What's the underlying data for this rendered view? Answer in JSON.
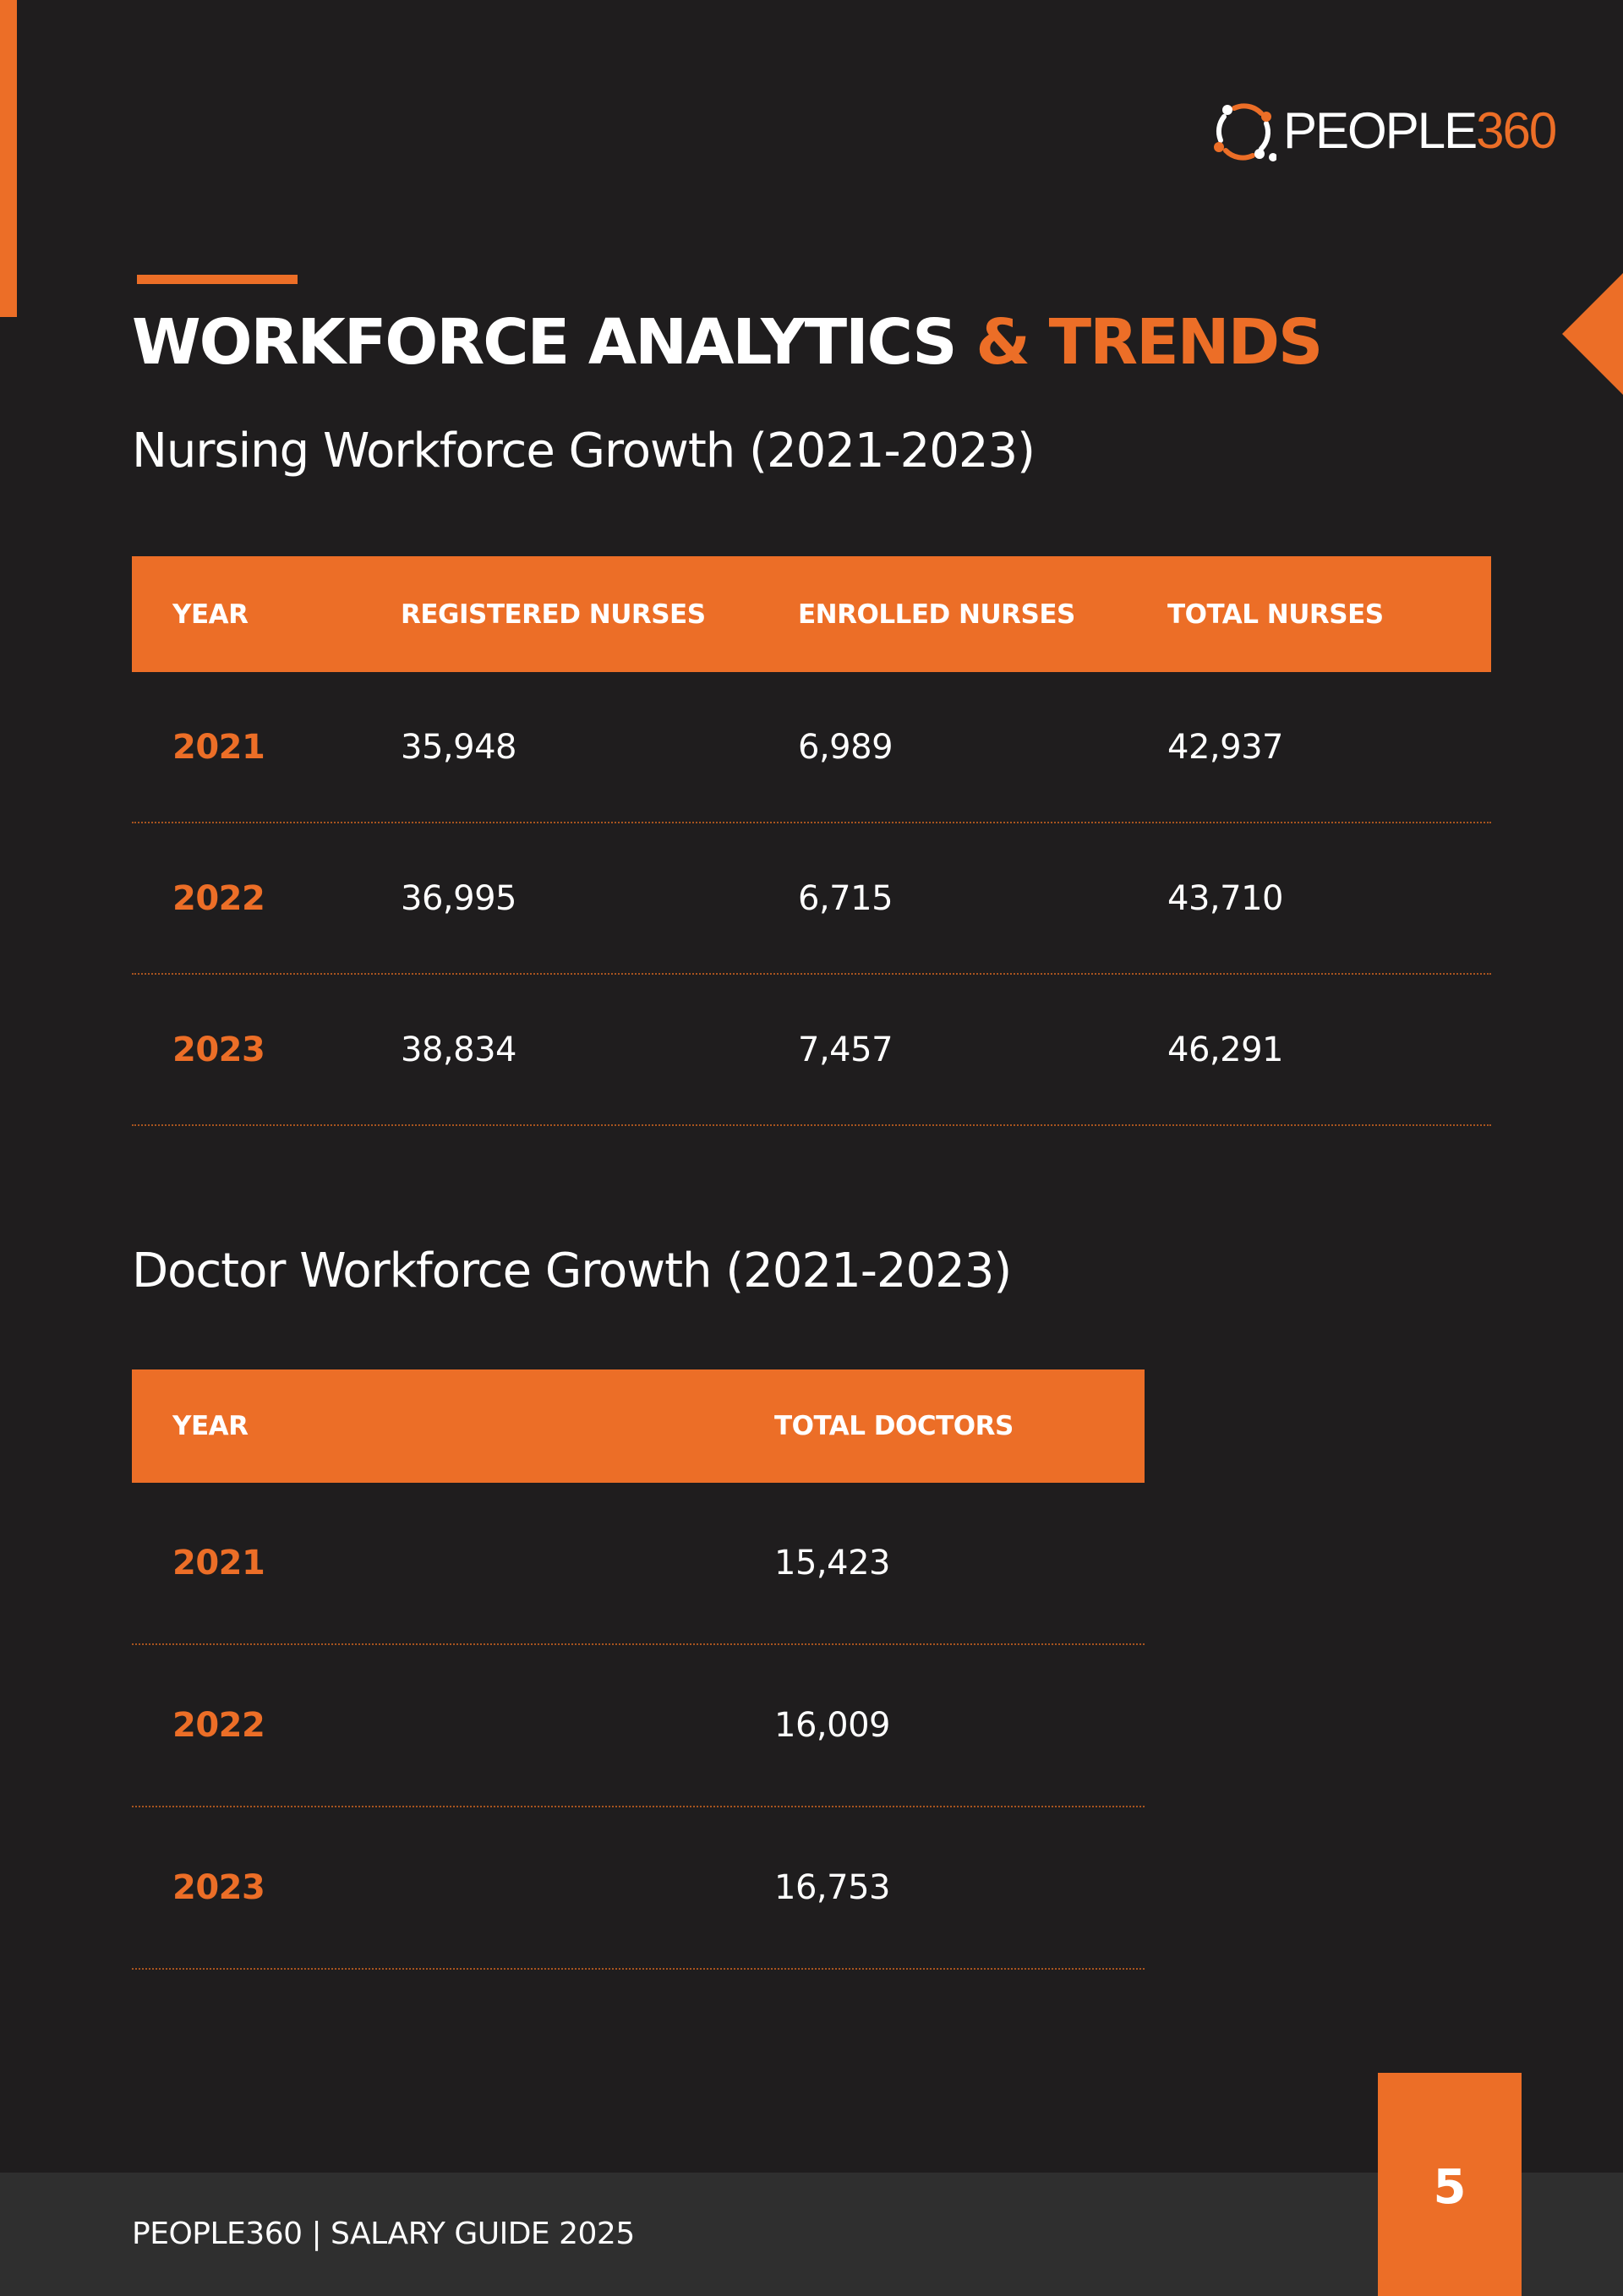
{
  "logo": {
    "text_main": "PEOPLE",
    "text_accent": "360"
  },
  "title": {
    "part1": "WORKFORCE ANALYTICS",
    "part2": "& TRENDS"
  },
  "nursing": {
    "heading": "Nursing Workforce Growth (2021-2023)",
    "columns": [
      "YEAR",
      "REGISTERED NURSES",
      "ENROLLED NURSES",
      "TOTAL NURSES"
    ],
    "rows": [
      [
        "2021",
        "35,948",
        "6,989",
        "42,937"
      ],
      [
        "2022",
        "36,995",
        "6,715",
        "43,710"
      ],
      [
        "2023",
        "38,834",
        "7,457",
        "46,291"
      ]
    ]
  },
  "doctors": {
    "heading": "Doctor Workforce Growth (2021-2023)",
    "columns": [
      "YEAR",
      "TOTAL DOCTORS"
    ],
    "rows": [
      [
        "2021",
        "15,423"
      ],
      [
        "2022",
        "16,009"
      ],
      [
        "2023",
        "16,753"
      ]
    ]
  },
  "footer": {
    "text": "PEOPLE360 | SALARY GUIDE 2025",
    "page_number": "5"
  },
  "colors": {
    "background": "#1f1d1e",
    "accent": "#ec6e27",
    "footer_band": "#2f2f2f"
  },
  "icons": {
    "logo_mark": "people-circle-logo-icon"
  }
}
